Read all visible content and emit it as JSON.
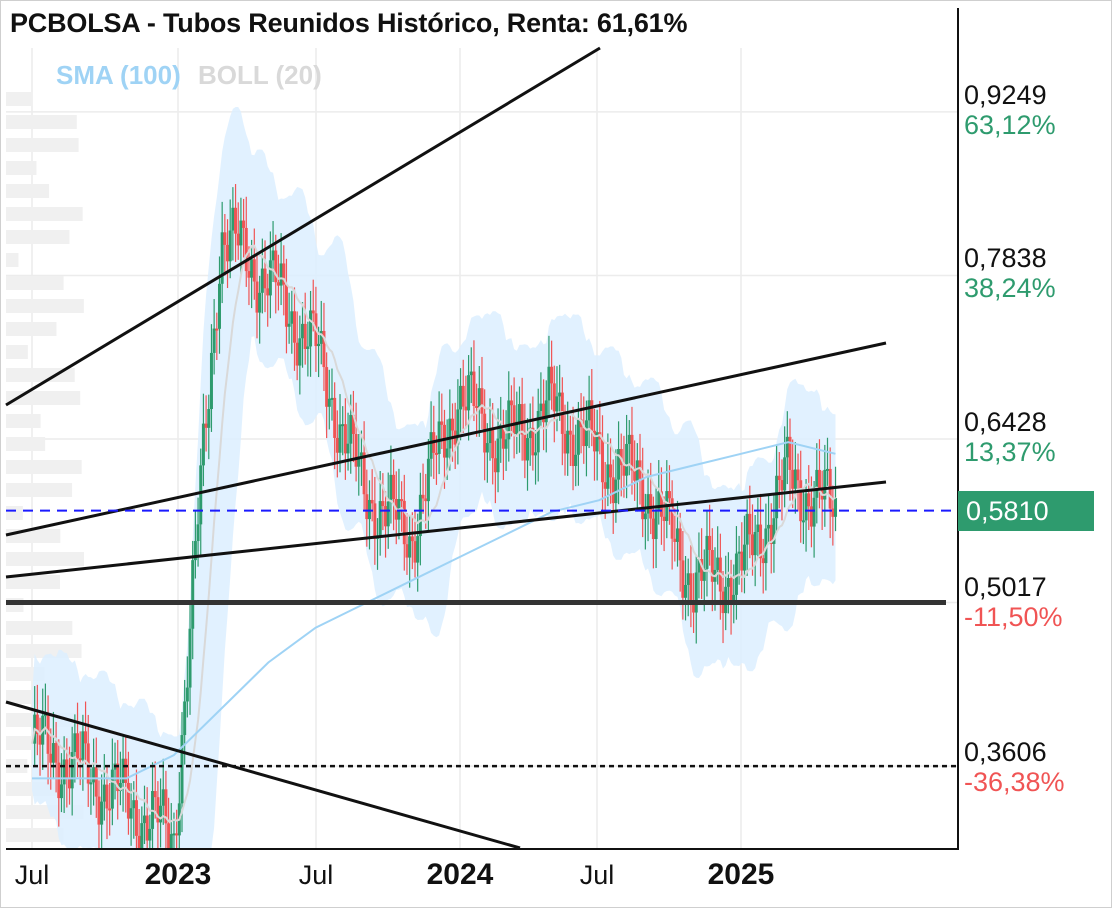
{
  "title": "PCBOLSA - Tubos Reunidos Histórico, Renta: 61,61%",
  "legend": [
    {
      "label": "SMA (100)",
      "color": "#9fd3f5"
    },
    {
      "label": "BOLL (20)",
      "color": "#d9d9d9"
    }
  ],
  "current_price": "0,5810",
  "levels": [
    {
      "price": "0,9249",
      "change": "63,12%",
      "color": "#2e9b6e"
    },
    {
      "price": "0,7838",
      "change": "38,24%",
      "color": "#2e9b6e"
    },
    {
      "price": "0,6428",
      "change": "13,37%",
      "color": "#2e9b6e"
    },
    {
      "price": "0,5017",
      "change": "-11,50%",
      "color": "#f05454"
    },
    {
      "price": "0,3606",
      "change": "-36,38%",
      "color": "#f05454"
    }
  ],
  "x_ticks": [
    {
      "label": "Jul",
      "bold": false
    },
    {
      "label": "2023",
      "bold": true
    },
    {
      "label": "Jul",
      "bold": false
    },
    {
      "label": "2024",
      "bold": true
    },
    {
      "label": "Jul",
      "bold": false
    },
    {
      "label": "2025",
      "bold": true
    }
  ],
  "colors": {
    "up": "#2e9b6e",
    "down": "#f05454",
    "sma": "#9fd3f5",
    "boll": "#d9d9d9",
    "band": "#dcefff"
  },
  "chart_data": {
    "type": "line",
    "title": "PCBOLSA - Tubos Reunidos Histórico, Renta: 61,61%",
    "x": [
      "2022-07",
      "2022-09",
      "2022-11",
      "2023-01",
      "2023-03",
      "2023-05",
      "2023-07",
      "2023-09",
      "2023-11",
      "2024-01",
      "2024-03",
      "2024-05",
      "2024-07",
      "2024-09",
      "2024-11",
      "2025-01",
      "2025-03",
      "2025-05"
    ],
    "series": [
      {
        "name": "PCBOLSA",
        "values": [
          0.38,
          0.36,
          0.33,
          0.3,
          0.82,
          0.78,
          0.72,
          0.6,
          0.56,
          0.68,
          0.64,
          0.67,
          0.63,
          0.6,
          0.52,
          0.53,
          0.61,
          0.58
        ]
      },
      {
        "name": "SMA (100)",
        "values": [
          0.35,
          0.35,
          0.35,
          0.37,
          0.41,
          0.45,
          0.48,
          0.5,
          0.52,
          0.54,
          0.56,
          0.58,
          0.59,
          0.61,
          0.62,
          0.63,
          0.64,
          0.63
        ]
      }
    ],
    "ylim": [
      0.29,
      0.98
    ],
    "price_levels": [
      0.9249,
      0.7838,
      0.6428,
      0.5017,
      0.3606
    ],
    "last_price": 0.581,
    "grid": true
  }
}
